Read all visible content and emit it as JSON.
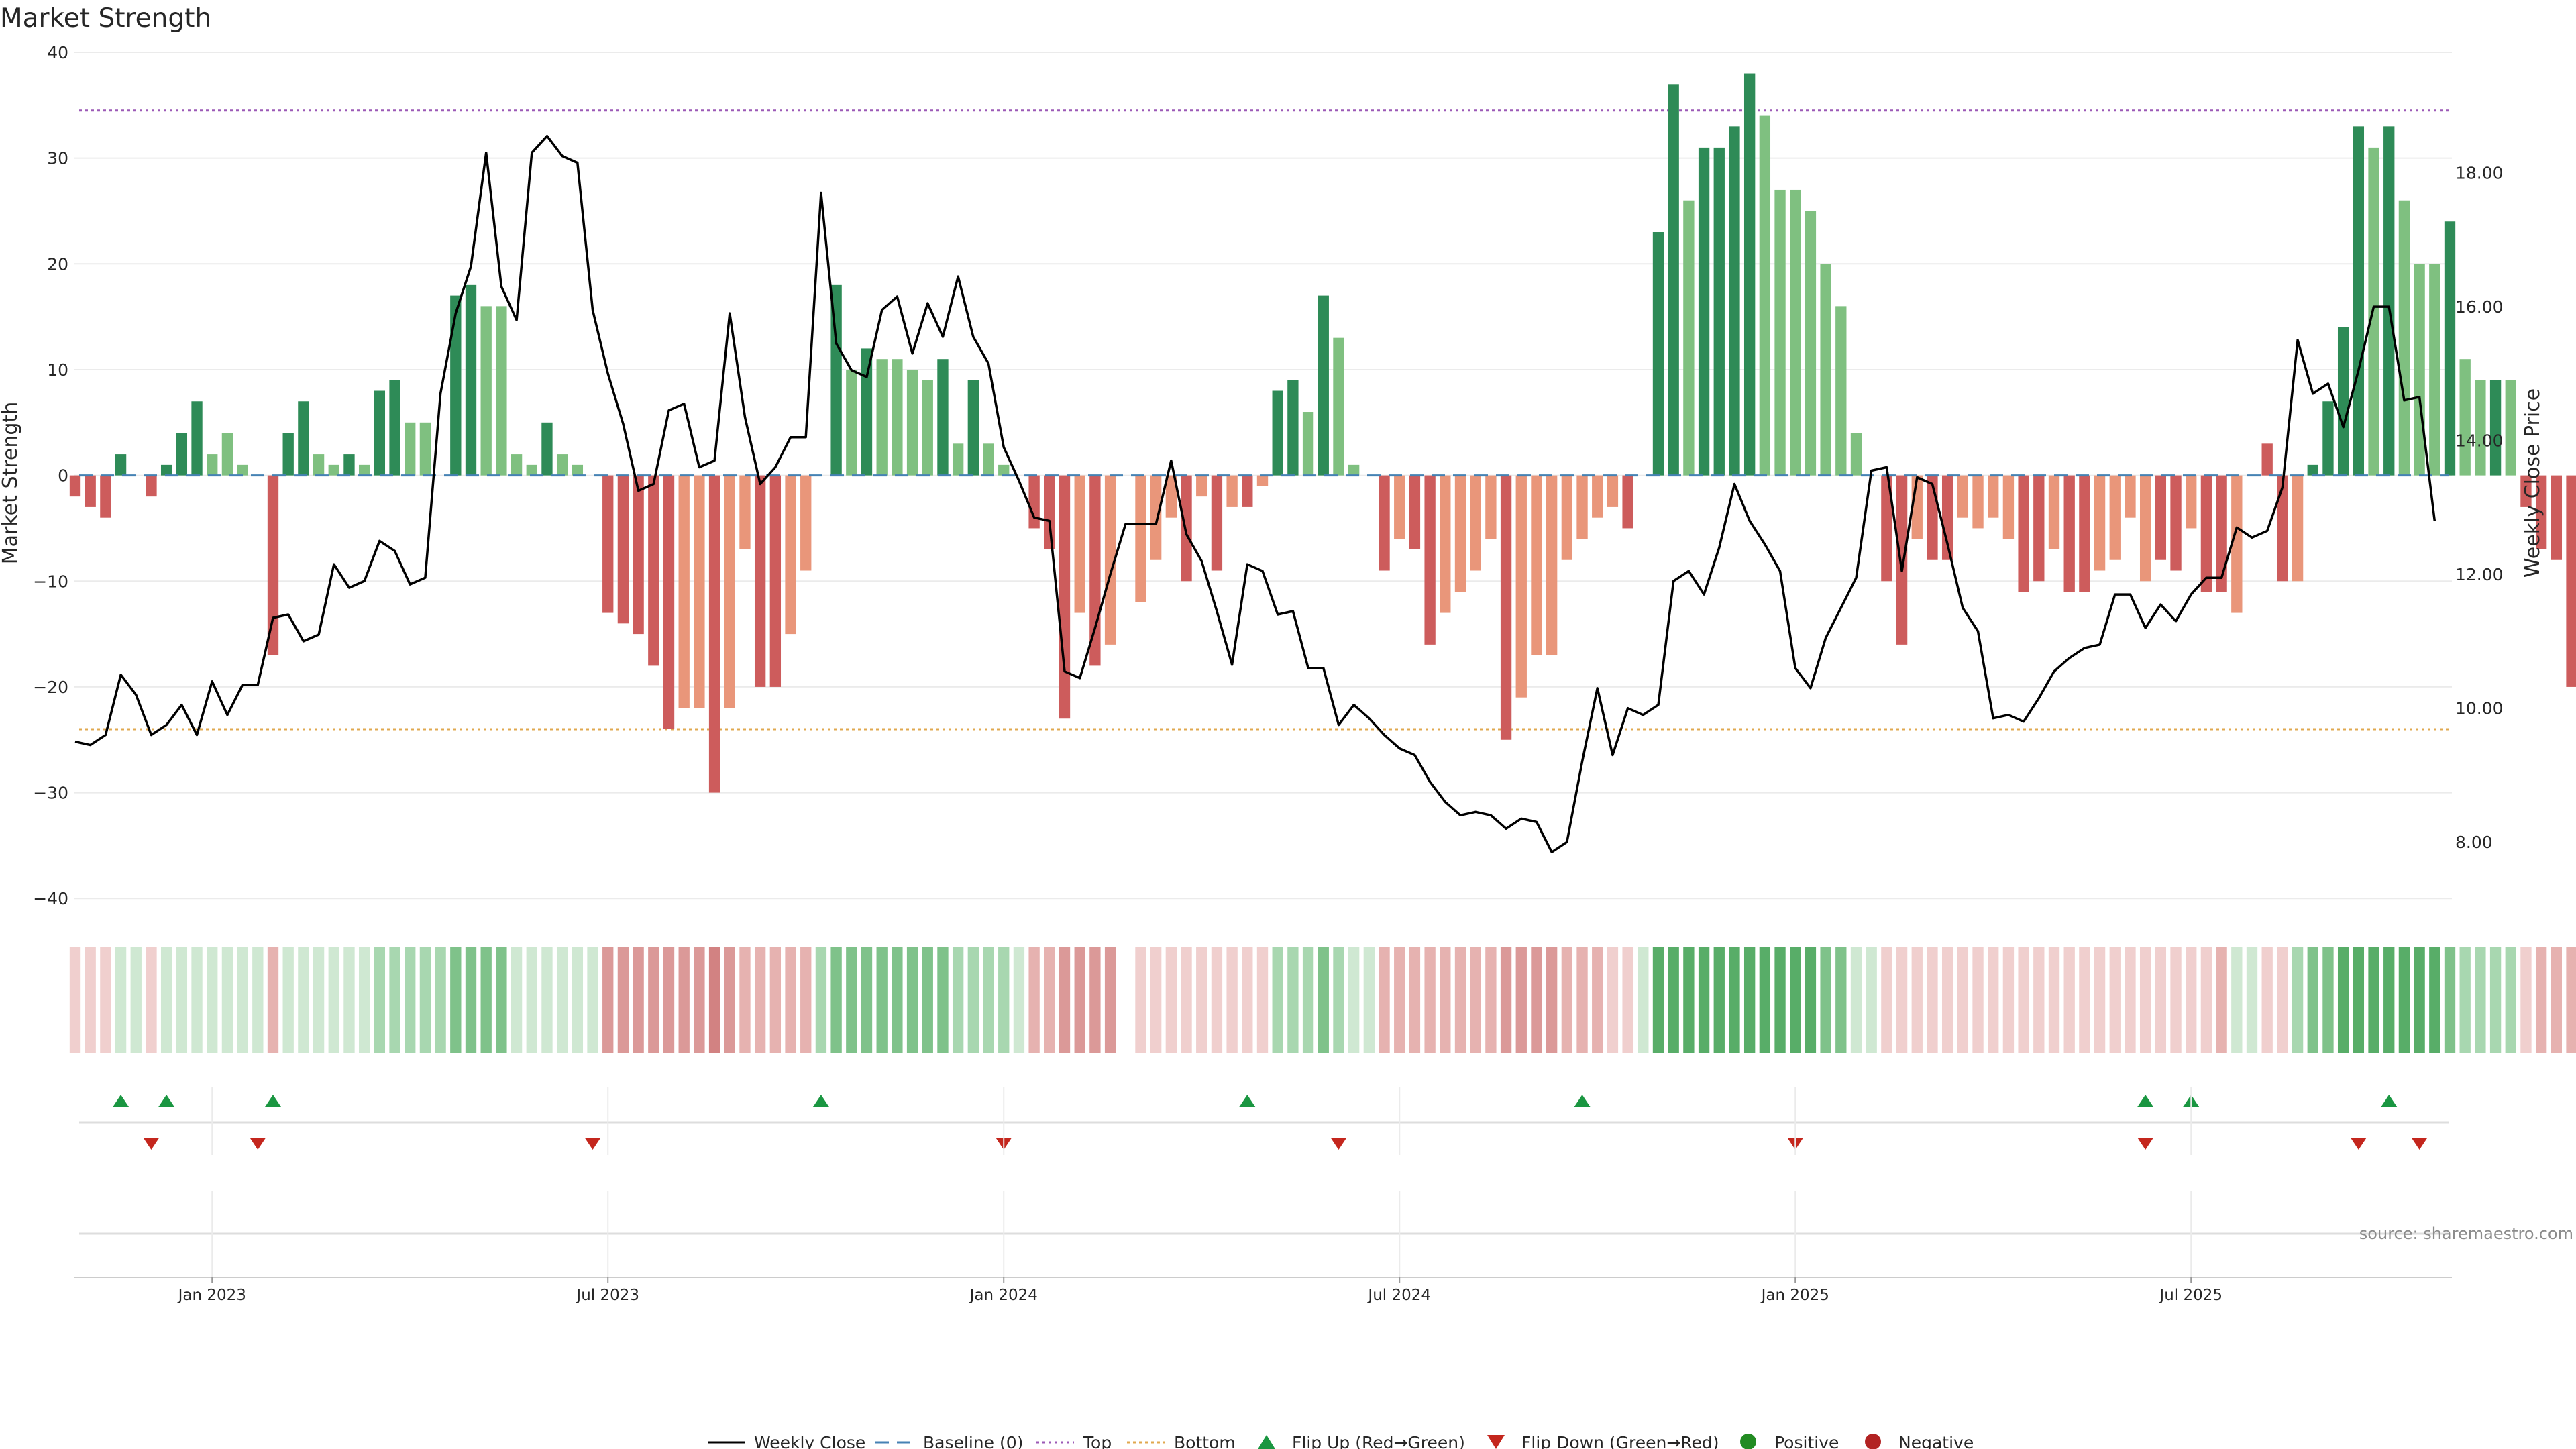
{
  "chart_data": {
    "type": "bar+line",
    "title": "Market Strength",
    "ylabel_left": "Market Strength",
    "ylabel_right": "Weekly Close Price",
    "ylim_left": [
      -41,
      40
    ],
    "ylim_right": [
      7.0,
      19.8
    ],
    "left_ticks": [
      40,
      30,
      20,
      10,
      0,
      -10,
      -20,
      -30,
      -40
    ],
    "left_tick_labels": [
      "40",
      "30",
      "20",
      "10",
      "0",
      "−10",
      "−20",
      "−30",
      "−40"
    ],
    "right_ticks": [
      18,
      16,
      14,
      12,
      10,
      8
    ],
    "right_tick_labels": [
      "18.00",
      "16.00",
      "14.00",
      "12.00",
      "10.00",
      "8.00"
    ],
    "top_threshold": 34.5,
    "bottom_threshold": -24,
    "date_labels": [
      "Jan 2023",
      "Jul 2023",
      "Jan 2024",
      "Jul 2024",
      "Jan 2025",
      "Jul 2025"
    ],
    "date_label_weeks": [
      9,
      35,
      61,
      87,
      113,
      139
    ],
    "week_count": 157,
    "strength": [
      -2,
      -3,
      -4,
      2,
      0,
      -2,
      1,
      4,
      7,
      2,
      4,
      1,
      0,
      -17,
      4,
      7,
      2,
      1,
      2,
      1,
      8,
      9,
      5,
      5,
      0,
      17,
      18,
      16,
      16,
      2,
      1,
      5,
      2,
      1,
      0,
      -13,
      -14,
      -15,
      -18,
      -24,
      -22,
      -22,
      -30,
      -22,
      -7,
      -20,
      -20,
      -15,
      -9,
      0,
      18,
      10,
      12,
      11,
      11,
      10,
      9,
      11,
      3,
      9,
      3,
      1,
      0,
      -5,
      -7,
      -23,
      -13,
      -18,
      -16,
      0,
      -12,
      -8,
      -4,
      -10,
      -2,
      -9,
      -3,
      -3,
      -1,
      8,
      9,
      6,
      17,
      13,
      1,
      0,
      -9,
      -6,
      -7,
      -16,
      -13,
      -11,
      -9,
      -6,
      -25,
      -21,
      -17,
      -17,
      -8,
      -6,
      -4,
      -3,
      -5,
      0,
      23,
      37,
      26,
      31,
      31,
      33,
      38,
      34,
      27,
      27,
      25,
      20,
      16,
      4,
      0,
      -10,
      -16,
      -6,
      -8,
      -8,
      -4,
      -5,
      -4,
      -6,
      -11,
      -10,
      -7,
      -11,
      -11,
      -9,
      -8,
      -4,
      -10,
      -8,
      -9,
      -5,
      -11,
      -11,
      -13,
      0,
      3,
      -10,
      -10,
      1,
      7,
      14,
      33,
      31,
      33,
      26,
      20,
      20,
      24,
      11,
      9,
      9,
      9,
      -3,
      -7,
      -8,
      -20
    ],
    "strength_hues": [
      "r",
      "r",
      "r",
      "g",
      "g",
      "r",
      "g",
      "g",
      "g",
      "lg",
      "lg",
      "lg",
      "lg",
      "r",
      "g",
      "g",
      "lg",
      "lg",
      "g",
      "lg",
      "g",
      "g",
      "lg",
      "lg",
      "lg",
      "g",
      "g",
      "lg",
      "lg",
      "lg",
      "lg",
      "g",
      "lg",
      "lg",
      "lg",
      "r",
      "r",
      "r",
      "r",
      "r",
      "lr",
      "lr",
      "r",
      "lr",
      "lr",
      "r",
      "r",
      "lr",
      "lr",
      "lr",
      "g",
      "lg",
      "g",
      "lg",
      "lg",
      "lg",
      "lg",
      "g",
      "lg",
      "g",
      "lg",
      "lg",
      "lg",
      "r",
      "r",
      "r",
      "lr",
      "r",
      "lr",
      "lr",
      "lr",
      "lr",
      "lr",
      "r",
      "lr",
      "r",
      "lr",
      "r",
      "lr",
      "g",
      "g",
      "lg",
      "g",
      "lg",
      "lg",
      "lg",
      "r",
      "lr",
      "r",
      "r",
      "lr",
      "lr",
      "lr",
      "lr",
      "r",
      "lr",
      "lr",
      "lr",
      "lr",
      "lr",
      "lr",
      "lr",
      "r",
      "lr",
      "g",
      "g",
      "lg",
      "g",
      "g",
      "g",
      "g",
      "lg",
      "lg",
      "lg",
      "lg",
      "lg",
      "lg",
      "lg",
      "lr",
      "r",
      "r",
      "lr",
      "r",
      "r",
      "lr",
      "lr",
      "lr",
      "lr",
      "r",
      "r",
      "lr",
      "r",
      "r",
      "lr",
      "lr",
      "lr",
      "lr",
      "r",
      "r",
      "lr",
      "r",
      "r",
      "lr",
      "g",
      "r",
      "r",
      "lr",
      "g",
      "g",
      "g",
      "g",
      "lg",
      "g",
      "lg",
      "lg",
      "lg",
      "g",
      "lg",
      "lg",
      "g",
      "lg",
      "r",
      "r",
      "r",
      "r"
    ],
    "heat_levels": [
      -1,
      -1,
      -1,
      1,
      1,
      -1,
      1,
      1,
      1,
      1,
      1,
      1,
      1,
      -2,
      1,
      1,
      1,
      1,
      1,
      1,
      2,
      2,
      2,
      2,
      2,
      3,
      3,
      3,
      3,
      1,
      1,
      1,
      1,
      1,
      1,
      -3,
      -3,
      -3,
      -3,
      -3,
      -3,
      -3,
      -4,
      -3,
      -2,
      -2,
      -2,
      -2,
      -2,
      2,
      3,
      3,
      3,
      3,
      3,
      3,
      3,
      3,
      2,
      2,
      2,
      2,
      1,
      -2,
      -2,
      -3,
      -3,
      -3,
      -3,
      0,
      -1,
      -1,
      -1,
      -1,
      -1,
      -1,
      -1,
      -1,
      -1,
      2,
      2,
      2,
      3,
      2,
      1,
      1,
      -2,
      -2,
      -2,
      -2,
      -2,
      -2,
      -2,
      -2,
      -3,
      -3,
      -3,
      -3,
      -2,
      -2,
      -2,
      -1,
      -1,
      1,
      4,
      4,
      4,
      4,
      4,
      4,
      4,
      4,
      4,
      4,
      4,
      3,
      3,
      1,
      1,
      -1,
      -1,
      -1,
      -1,
      -1,
      -1,
      -1,
      -1,
      -1,
      -1,
      -1,
      -1,
      -1,
      -1,
      -1,
      -1,
      -1,
      -1,
      -1,
      -1,
      -1,
      -1,
      -2,
      1,
      1,
      -1,
      -1,
      2,
      3,
      3,
      4,
      4,
      4,
      4,
      4,
      4,
      4,
      3,
      2,
      2,
      2,
      2,
      -1,
      -2,
      -2,
      -2
    ],
    "weekly_close": [
      9.5,
      9.45,
      9.6,
      10.5,
      10.2,
      9.6,
      9.75,
      10.05,
      9.6,
      10.4,
      9.9,
      10.35,
      10.35,
      11.35,
      11.4,
      11.0,
      11.1,
      12.15,
      11.8,
      11.9,
      12.5,
      12.35,
      11.85,
      11.95,
      14.7,
      15.9,
      16.6,
      18.3,
      16.3,
      15.8,
      18.3,
      18.55,
      18.25,
      18.15,
      15.95,
      15.0,
      14.25,
      13.25,
      13.35,
      14.45,
      14.55,
      13.6,
      13.7,
      15.9,
      14.35,
      13.35,
      13.6,
      14.05,
      14.05,
      17.7,
      15.45,
      15.05,
      14.95,
      15.95,
      16.15,
      15.3,
      16.05,
      15.55,
      16.45,
      15.55,
      15.15,
      13.9,
      13.4,
      12.85,
      12.8,
      10.55,
      10.45,
      11.2,
      12.0,
      12.75,
      12.75,
      12.75,
      13.7,
      12.6,
      12.2,
      11.45,
      10.65,
      12.15,
      12.05,
      11.4,
      11.45,
      10.6,
      10.6,
      9.75,
      10.05,
      9.85,
      9.6,
      9.4,
      9.3,
      8.9,
      8.6,
      8.4,
      8.45,
      8.4,
      8.2,
      8.35,
      8.3,
      7.85,
      8.0,
      9.2,
      10.3,
      9.3,
      10.0,
      9.9,
      10.05,
      11.9,
      12.05,
      11.7,
      12.4,
      13.35,
      12.8,
      12.45,
      12.05,
      10.6,
      10.3,
      11.05,
      11.5,
      11.95,
      13.55,
      13.6,
      12.05,
      13.45,
      13.35,
      12.45,
      11.5,
      11.15,
      9.85,
      9.9,
      9.8,
      10.15,
      10.55,
      10.75,
      10.9,
      10.95,
      11.7,
      11.7,
      11.2,
      11.55,
      11.3,
      11.7,
      11.95,
      11.95,
      12.7,
      12.55,
      12.65,
      13.3,
      15.5,
      14.7,
      14.85,
      14.2,
      15.05,
      16.0,
      16.0,
      14.6,
      14.65,
      12.8
    ],
    "flip_up_weeks": [
      3,
      6,
      13,
      49,
      77,
      99,
      136,
      139,
      152
    ],
    "flip_down_weeks": [
      5,
      12,
      34,
      61,
      83,
      113,
      136,
      150,
      154
    ],
    "legend": [
      "Weekly Close",
      "Baseline (0)",
      "Top",
      "Bottom",
      "Flip Up (Red→Green)",
      "Flip Down (Green→Red)",
      "Positive",
      "Negative"
    ],
    "source": "source: sharemaestro.com"
  },
  "colors": {
    "positive_strong": "#2e8b57",
    "positive_light": "#7fc080",
    "negative_strong": "#cd5c5c",
    "negative_light": "#e9967a",
    "line": "#000000",
    "baseline": "#4682b4",
    "top": "#9b59b6",
    "bottom": "#e0a84f",
    "flip_up": "#1a9641",
    "flip_down": "#c4261d",
    "positive_dot": "#228b22",
    "negative_dot": "#b22222",
    "grid": "#ebebeb",
    "source": "#8c8c8c"
  }
}
